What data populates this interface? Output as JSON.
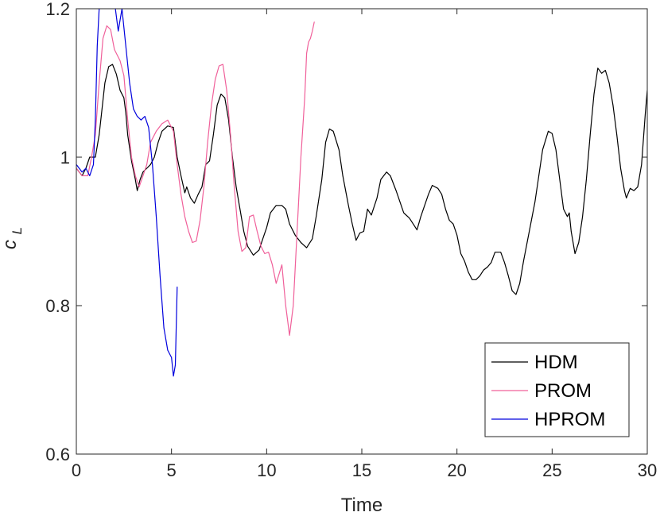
{
  "chart_data": {
    "type": "line",
    "xlabel": "Time",
    "ylabel": "c",
    "ylabel_sub": "L",
    "xlim": [
      0,
      30
    ],
    "ylim": [
      0.6,
      1.2
    ],
    "xticks": [
      0,
      5,
      10,
      15,
      20,
      25,
      30
    ],
    "yticks": [
      0.6,
      0.8,
      1,
      1.2
    ],
    "xtick_labels": [
      "0",
      "5",
      "10",
      "15",
      "20",
      "25",
      "30"
    ],
    "ytick_labels": [
      "0.6",
      "0.8",
      "1",
      "1.2"
    ],
    "grid": false,
    "legend_position": "bottom-right",
    "series": [
      {
        "name": "HDM",
        "color": "#000000",
        "points": [
          [
            0.0,
            0.985
          ],
          [
            0.3,
            0.975
          ],
          [
            0.5,
            0.985
          ],
          [
            0.7,
            1.0
          ],
          [
            1.0,
            1.0
          ],
          [
            1.2,
            1.03
          ],
          [
            1.5,
            1.1
          ],
          [
            1.7,
            1.122
          ],
          [
            1.9,
            1.125
          ],
          [
            2.1,
            1.112
          ],
          [
            2.3,
            1.09
          ],
          [
            2.5,
            1.08
          ],
          [
            2.6,
            1.06
          ],
          [
            2.7,
            1.03
          ],
          [
            2.9,
            0.995
          ],
          [
            3.1,
            0.97
          ],
          [
            3.2,
            0.955
          ],
          [
            3.35,
            0.97
          ],
          [
            3.5,
            0.98
          ],
          [
            3.7,
            0.985
          ],
          [
            3.9,
            0.99
          ],
          [
            4.1,
            1.0
          ],
          [
            4.3,
            1.02
          ],
          [
            4.5,
            1.035
          ],
          [
            4.8,
            1.042
          ],
          [
            5.1,
            1.04
          ],
          [
            5.3,
            1.0
          ],
          [
            5.5,
            0.975
          ],
          [
            5.7,
            0.952
          ],
          [
            5.8,
            0.96
          ],
          [
            6.0,
            0.945
          ],
          [
            6.2,
            0.938
          ],
          [
            6.4,
            0.95
          ],
          [
            6.6,
            0.96
          ],
          [
            6.8,
            0.99
          ],
          [
            7.0,
            0.995
          ],
          [
            7.2,
            1.03
          ],
          [
            7.4,
            1.07
          ],
          [
            7.6,
            1.085
          ],
          [
            7.8,
            1.08
          ],
          [
            8.0,
            1.05
          ],
          [
            8.2,
            1.0
          ],
          [
            8.4,
            0.96
          ],
          [
            8.6,
            0.93
          ],
          [
            8.8,
            0.9
          ],
          [
            9.0,
            0.88
          ],
          [
            9.3,
            0.868
          ],
          [
            9.6,
            0.875
          ],
          [
            9.8,
            0.89
          ],
          [
            10.0,
            0.905
          ],
          [
            10.2,
            0.925
          ],
          [
            10.5,
            0.935
          ],
          [
            10.8,
            0.935
          ],
          [
            11.0,
            0.93
          ],
          [
            11.2,
            0.91
          ],
          [
            11.5,
            0.895
          ],
          [
            11.8,
            0.885
          ],
          [
            12.1,
            0.878
          ],
          [
            12.4,
            0.89
          ],
          [
            12.6,
            0.92
          ],
          [
            12.9,
            0.97
          ],
          [
            13.1,
            1.02
          ],
          [
            13.3,
            1.038
          ],
          [
            13.5,
            1.035
          ],
          [
            13.8,
            1.01
          ],
          [
            14.0,
            0.975
          ],
          [
            14.3,
            0.935
          ],
          [
            14.5,
            0.91
          ],
          [
            14.7,
            0.888
          ],
          [
            14.9,
            0.898
          ],
          [
            15.1,
            0.9
          ],
          [
            15.3,
            0.93
          ],
          [
            15.5,
            0.922
          ],
          [
            15.8,
            0.945
          ],
          [
            16.0,
            0.97
          ],
          [
            16.3,
            0.98
          ],
          [
            16.5,
            0.975
          ],
          [
            16.8,
            0.955
          ],
          [
            17.0,
            0.94
          ],
          [
            17.2,
            0.925
          ],
          [
            17.5,
            0.918
          ],
          [
            17.7,
            0.91
          ],
          [
            17.9,
            0.902
          ],
          [
            18.1,
            0.92
          ],
          [
            18.3,
            0.935
          ],
          [
            18.5,
            0.95
          ],
          [
            18.7,
            0.962
          ],
          [
            19.0,
            0.958
          ],
          [
            19.2,
            0.95
          ],
          [
            19.4,
            0.93
          ],
          [
            19.6,
            0.915
          ],
          [
            19.8,
            0.91
          ],
          [
            20.0,
            0.895
          ],
          [
            20.2,
            0.87
          ],
          [
            20.4,
            0.86
          ],
          [
            20.6,
            0.845
          ],
          [
            20.8,
            0.835
          ],
          [
            21.0,
            0.835
          ],
          [
            21.2,
            0.84
          ],
          [
            21.4,
            0.848
          ],
          [
            21.6,
            0.852
          ],
          [
            21.8,
            0.858
          ],
          [
            22.0,
            0.872
          ],
          [
            22.3,
            0.872
          ],
          [
            22.5,
            0.858
          ],
          [
            22.7,
            0.84
          ],
          [
            22.9,
            0.82
          ],
          [
            23.1,
            0.815
          ],
          [
            23.3,
            0.83
          ],
          [
            23.5,
            0.86
          ],
          [
            23.8,
            0.9
          ],
          [
            24.1,
            0.94
          ],
          [
            24.3,
            0.975
          ],
          [
            24.5,
            1.01
          ],
          [
            24.8,
            1.035
          ],
          [
            25.0,
            1.032
          ],
          [
            25.2,
            1.01
          ],
          [
            25.4,
            0.97
          ],
          [
            25.6,
            0.93
          ],
          [
            25.8,
            0.92
          ],
          [
            25.9,
            0.925
          ],
          [
            26.0,
            0.9
          ],
          [
            26.2,
            0.87
          ],
          [
            26.4,
            0.885
          ],
          [
            26.6,
            0.92
          ],
          [
            26.8,
            0.97
          ],
          [
            27.0,
            1.03
          ],
          [
            27.2,
            1.085
          ],
          [
            27.4,
            1.12
          ],
          [
            27.6,
            1.113
          ],
          [
            27.8,
            1.117
          ],
          [
            28.0,
            1.1
          ],
          [
            28.2,
            1.07
          ],
          [
            28.4,
            1.03
          ],
          [
            28.6,
            0.985
          ],
          [
            28.8,
            0.955
          ],
          [
            28.9,
            0.945
          ],
          [
            29.1,
            0.958
          ],
          [
            29.3,
            0.955
          ],
          [
            29.5,
            0.96
          ],
          [
            29.7,
            0.99
          ],
          [
            29.9,
            1.06
          ],
          [
            30.0,
            1.09
          ]
        ]
      },
      {
        "name": "PROM",
        "color": "#f0609a",
        "points": [
          [
            0.0,
            0.985
          ],
          [
            0.3,
            0.975
          ],
          [
            0.6,
            0.975
          ],
          [
            0.8,
            1.0
          ],
          [
            1.0,
            1.03
          ],
          [
            1.2,
            1.1
          ],
          [
            1.4,
            1.16
          ],
          [
            1.6,
            1.177
          ],
          [
            1.8,
            1.172
          ],
          [
            2.0,
            1.145
          ],
          [
            2.3,
            1.13
          ],
          [
            2.5,
            1.11
          ],
          [
            2.7,
            1.05
          ],
          [
            2.9,
            1.0
          ],
          [
            3.1,
            0.975
          ],
          [
            3.3,
            0.96
          ],
          [
            3.5,
            0.975
          ],
          [
            3.7,
            0.99
          ],
          [
            3.9,
            1.02
          ],
          [
            4.2,
            1.035
          ],
          [
            4.5,
            1.045
          ],
          [
            4.8,
            1.05
          ],
          [
            5.1,
            1.035
          ],
          [
            5.3,
            0.99
          ],
          [
            5.5,
            0.95
          ],
          [
            5.7,
            0.92
          ],
          [
            5.9,
            0.9
          ],
          [
            6.1,
            0.885
          ],
          [
            6.3,
            0.887
          ],
          [
            6.5,
            0.915
          ],
          [
            6.7,
            0.96
          ],
          [
            6.9,
            1.02
          ],
          [
            7.1,
            1.07
          ],
          [
            7.3,
            1.105
          ],
          [
            7.5,
            1.123
          ],
          [
            7.7,
            1.125
          ],
          [
            7.9,
            1.09
          ],
          [
            8.1,
            1.03
          ],
          [
            8.3,
            0.96
          ],
          [
            8.5,
            0.9
          ],
          [
            8.7,
            0.873
          ],
          [
            8.9,
            0.878
          ],
          [
            9.1,
            0.92
          ],
          [
            9.3,
            0.922
          ],
          [
            9.5,
            0.9
          ],
          [
            9.7,
            0.88
          ],
          [
            9.9,
            0.87
          ],
          [
            10.1,
            0.872
          ],
          [
            10.3,
            0.855
          ],
          [
            10.5,
            0.83
          ],
          [
            10.8,
            0.855
          ],
          [
            11.0,
            0.8
          ],
          [
            11.2,
            0.76
          ],
          [
            11.4,
            0.8
          ],
          [
            11.6,
            0.9
          ],
          [
            11.8,
            1.0
          ],
          [
            12.0,
            1.08
          ],
          [
            12.1,
            1.14
          ],
          [
            12.2,
            1.155
          ],
          [
            12.3,
            1.16
          ],
          [
            12.4,
            1.17
          ],
          [
            12.5,
            1.182
          ]
        ]
      },
      {
        "name": "HPROM",
        "color": "#0000dd",
        "points": [
          [
            0.0,
            0.99
          ],
          [
            0.3,
            0.98
          ],
          [
            0.5,
            0.985
          ],
          [
            0.7,
            0.975
          ],
          [
            0.9,
            0.99
          ],
          [
            1.0,
            1.05
          ],
          [
            1.1,
            1.15
          ],
          [
            1.2,
            1.2
          ],
          [
            1.3,
            1.25
          ],
          [
            1.4,
            1.3
          ],
          [
            1.6,
            1.3
          ],
          [
            1.8,
            1.25
          ],
          [
            2.0,
            1.21
          ],
          [
            2.2,
            1.17
          ],
          [
            2.4,
            1.2
          ],
          [
            2.6,
            1.15
          ],
          [
            2.8,
            1.1
          ],
          [
            3.0,
            1.065
          ],
          [
            3.2,
            1.055
          ],
          [
            3.4,
            1.05
          ],
          [
            3.6,
            1.055
          ],
          [
            3.8,
            1.04
          ],
          [
            4.0,
            0.99
          ],
          [
            4.2,
            0.92
          ],
          [
            4.4,
            0.84
          ],
          [
            4.6,
            0.77
          ],
          [
            4.8,
            0.74
          ],
          [
            5.0,
            0.73
          ],
          [
            5.1,
            0.705
          ],
          [
            5.2,
            0.72
          ],
          [
            5.3,
            0.825
          ]
        ]
      }
    ]
  }
}
